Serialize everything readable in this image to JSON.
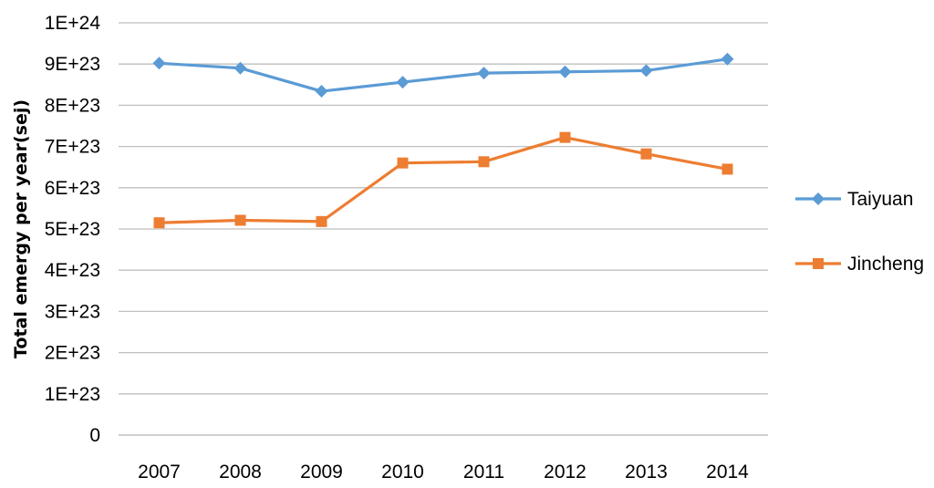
{
  "chart_data": {
    "type": "line",
    "title": "",
    "xlabel": "",
    "ylabel": "Total emergy per year(sej)",
    "categories": [
      "2007",
      "2008",
      "2009",
      "2010",
      "2011",
      "2012",
      "2013",
      "2014"
    ],
    "ylim": [
      0,
      1e+24
    ],
    "y_ticks": [
      0,
      1e+23,
      2e+23,
      3e+23,
      4e+23,
      5e+23,
      6e+23,
      7e+23,
      8e+23,
      9e+23,
      1e+24
    ],
    "y_tick_labels": [
      "0",
      "1E+23",
      "2E+23",
      "3E+23",
      "4E+23",
      "5E+23",
      "6E+23",
      "7E+23",
      "8E+23",
      "9E+23",
      "1E+24"
    ],
    "grid": "horizontal",
    "legend_position": "right",
    "series": [
      {
        "name": "Taiyuan",
        "color": "#5b9bd5",
        "marker": "diamond",
        "values": [
          9.02e+23,
          8.9e+23,
          8.34e+23,
          8.56e+23,
          8.78e+23,
          8.81e+23,
          8.84e+23,
          9.12e+23
        ]
      },
      {
        "name": "Jincheng",
        "color": "#ed7d31",
        "marker": "square",
        "values": [
          5.15e+23,
          5.21e+23,
          5.18e+23,
          6.6e+23,
          6.63e+23,
          7.22e+23,
          6.82e+23,
          6.45e+23
        ]
      }
    ]
  }
}
